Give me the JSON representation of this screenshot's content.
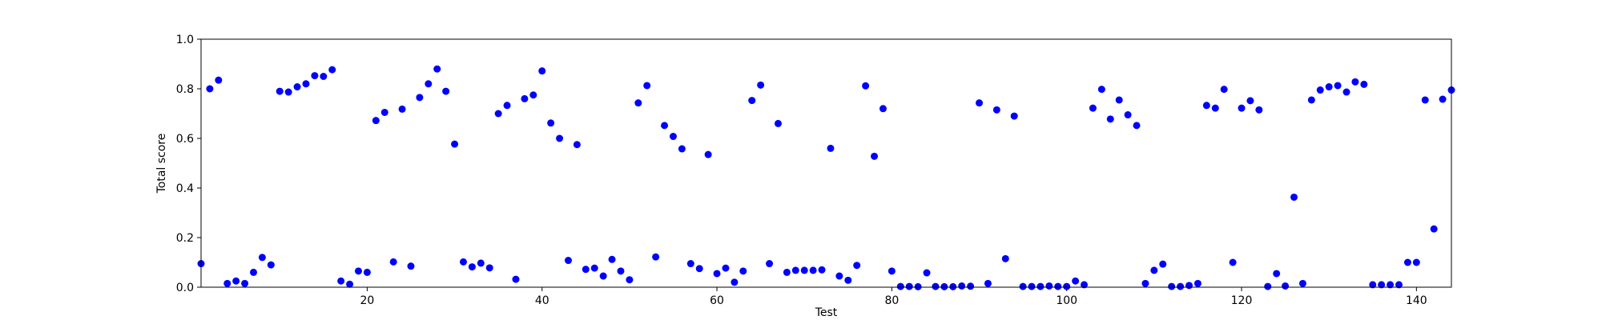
{
  "chart_data": {
    "type": "scatter",
    "xlabel": "Test",
    "ylabel": "Total score",
    "xlim": [
      1,
      144
    ],
    "ylim": [
      0,
      1
    ],
    "xticks": [
      20,
      40,
      60,
      80,
      100,
      120,
      140
    ],
    "yticks": [
      0.0,
      0.2,
      0.4,
      0.6,
      0.8,
      1.0
    ],
    "xtick_labels": [
      "20",
      "40",
      "60",
      "80",
      "100",
      "120",
      "140"
    ],
    "ytick_labels": [
      "0.0",
      "0.2",
      "0.4",
      "0.6",
      "0.8",
      "1.0"
    ],
    "grid": false,
    "legend": "none",
    "marker_color": "#0000ff",
    "points": [
      [
        1,
        0.095
      ],
      [
        2,
        0.8
      ],
      [
        3,
        0.835
      ],
      [
        4,
        0.015
      ],
      [
        5,
        0.025
      ],
      [
        6,
        0.015
      ],
      [
        7,
        0.06
      ],
      [
        8,
        0.12
      ],
      [
        9,
        0.09
      ],
      [
        10,
        0.79
      ],
      [
        11,
        0.787
      ],
      [
        12,
        0.808
      ],
      [
        13,
        0.82
      ],
      [
        14,
        0.853
      ],
      [
        15,
        0.85
      ],
      [
        16,
        0.877
      ],
      [
        17,
        0.025
      ],
      [
        18,
        0.012
      ],
      [
        19,
        0.065
      ],
      [
        20,
        0.06
      ],
      [
        21,
        0.672
      ],
      [
        22,
        0.705
      ],
      [
        23,
        0.102
      ],
      [
        24,
        0.718
      ],
      [
        25,
        0.085
      ],
      [
        26,
        0.765
      ],
      [
        27,
        0.82
      ],
      [
        28,
        0.88
      ],
      [
        29,
        0.79
      ],
      [
        30,
        0.577
      ],
      [
        31,
        0.102
      ],
      [
        32,
        0.082
      ],
      [
        33,
        0.097
      ],
      [
        34,
        0.078
      ],
      [
        35,
        0.7
      ],
      [
        36,
        0.733
      ],
      [
        37,
        0.032
      ],
      [
        38,
        0.76
      ],
      [
        39,
        0.775
      ],
      [
        40,
        0.872
      ],
      [
        41,
        0.662
      ],
      [
        42,
        0.6
      ],
      [
        43,
        0.108
      ],
      [
        44,
        0.575
      ],
      [
        45,
        0.072
      ],
      [
        46,
        0.077
      ],
      [
        47,
        0.045
      ],
      [
        48,
        0.112
      ],
      [
        49,
        0.065
      ],
      [
        50,
        0.03
      ],
      [
        51,
        0.743
      ],
      [
        52,
        0.813
      ],
      [
        53,
        0.122
      ],
      [
        54,
        0.652
      ],
      [
        55,
        0.608
      ],
      [
        56,
        0.558
      ],
      [
        57,
        0.095
      ],
      [
        58,
        0.075
      ],
      [
        59,
        0.535
      ],
      [
        60,
        0.055
      ],
      [
        61,
        0.077
      ],
      [
        62,
        0.02
      ],
      [
        63,
        0.065
      ],
      [
        64,
        0.753
      ],
      [
        65,
        0.815
      ],
      [
        66,
        0.095
      ],
      [
        67,
        0.66
      ],
      [
        68,
        0.06
      ],
      [
        69,
        0.068
      ],
      [
        70,
        0.068
      ],
      [
        71,
        0.068
      ],
      [
        72,
        0.07
      ],
      [
        73,
        0.56
      ],
      [
        74,
        0.045
      ],
      [
        75,
        0.028
      ],
      [
        76,
        0.088
      ],
      [
        77,
        0.812
      ],
      [
        78,
        0.528
      ],
      [
        79,
        0.72
      ],
      [
        80,
        0.065
      ],
      [
        81,
        0.003
      ],
      [
        82,
        0.003
      ],
      [
        83,
        0.002
      ],
      [
        84,
        0.058
      ],
      [
        85,
        0.003
      ],
      [
        86,
        0.002
      ],
      [
        87,
        0.002
      ],
      [
        88,
        0.005
      ],
      [
        89,
        0.004
      ],
      [
        90,
        0.743
      ],
      [
        91,
        0.015
      ],
      [
        92,
        0.715
      ],
      [
        93,
        0.115
      ],
      [
        94,
        0.69
      ],
      [
        95,
        0.003
      ],
      [
        96,
        0.003
      ],
      [
        97,
        0.003
      ],
      [
        98,
        0.005
      ],
      [
        99,
        0.003
      ],
      [
        100,
        0.003
      ],
      [
        101,
        0.025
      ],
      [
        102,
        0.01
      ],
      [
        103,
        0.722
      ],
      [
        104,
        0.798
      ],
      [
        105,
        0.678
      ],
      [
        106,
        0.755
      ],
      [
        107,
        0.695
      ],
      [
        108,
        0.652
      ],
      [
        109,
        0.015
      ],
      [
        110,
        0.068
      ],
      [
        111,
        0.093
      ],
      [
        112,
        0.003
      ],
      [
        113,
        0.003
      ],
      [
        114,
        0.007
      ],
      [
        115,
        0.015
      ],
      [
        116,
        0.733
      ],
      [
        117,
        0.722
      ],
      [
        118,
        0.798
      ],
      [
        119,
        0.1
      ],
      [
        120,
        0.722
      ],
      [
        121,
        0.752
      ],
      [
        122,
        0.715
      ],
      [
        123,
        0.003
      ],
      [
        124,
        0.055
      ],
      [
        125,
        0.005
      ],
      [
        126,
        0.363
      ],
      [
        127,
        0.015
      ],
      [
        128,
        0.755
      ],
      [
        129,
        0.795
      ],
      [
        130,
        0.808
      ],
      [
        131,
        0.813
      ],
      [
        132,
        0.787
      ],
      [
        133,
        0.828
      ],
      [
        134,
        0.818
      ],
      [
        135,
        0.01
      ],
      [
        136,
        0.01
      ],
      [
        137,
        0.01
      ],
      [
        138,
        0.01
      ],
      [
        139,
        0.1
      ],
      [
        140,
        0.1
      ],
      [
        141,
        0.755
      ],
      [
        142,
        0.235
      ],
      [
        143,
        0.758
      ],
      [
        144,
        0.795
      ]
    ]
  }
}
